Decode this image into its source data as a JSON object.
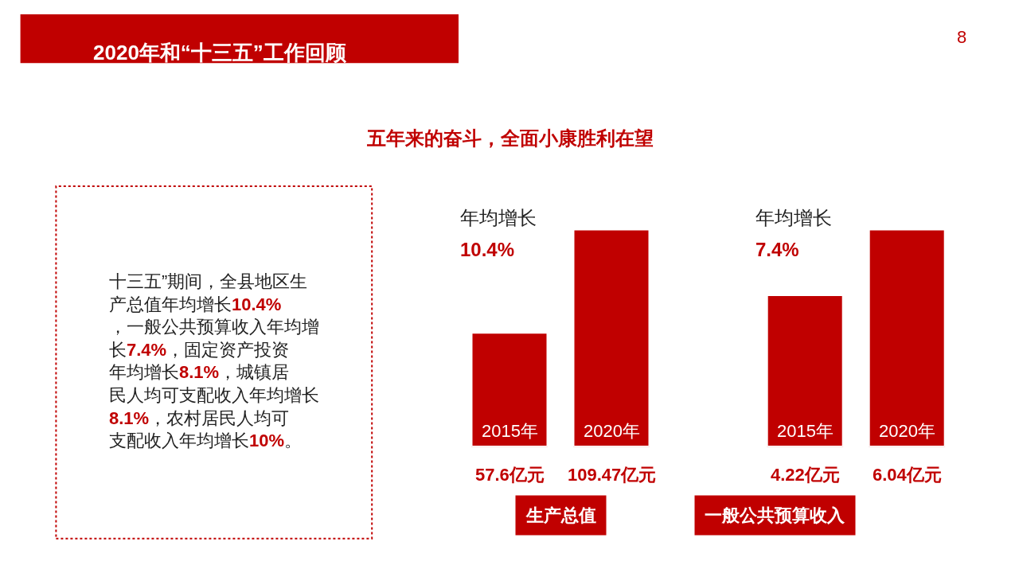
{
  "chart_data": [
    {
      "type": "other",
      "title": "2020年和“十三五”工作回顾",
      "subtitle": "五年来的奋斗，全面小康胜利在望",
      "annotations": [
        "十三五”期间，全县地区生产总值年均增长10.4%，一般公共预算收入年均增长7.4%，固定资产投资年均增长8.1%，城镇居民人均可支配收入年均增长8.1%，农村居民人均可支配收入年均增长10%。",
        "8"
      ]
    },
    {
      "type": "bar",
      "xlabel": "生产总值",
      "categories": [
        "2015年",
        "2020年"
      ],
      "values": [
        57.6,
        109.47
      ],
      "value_labels": [
        "57.6亿元",
        "109.47亿元"
      ],
      "color": "#c00000",
      "annotations": [
        "年均增长",
        "10.4%"
      ]
    },
    {
      "type": "bar",
      "xlabel": "一般公共预算收入",
      "categories": [
        "2015年",
        "2020年"
      ],
      "values": [
        4.22,
        6.04
      ],
      "value_labels": [
        "4.22亿元",
        "6.04亿元"
      ],
      "color": "#c00000",
      "annotations": [
        "年均增长",
        "7.4%"
      ]
    }
  ]
}
